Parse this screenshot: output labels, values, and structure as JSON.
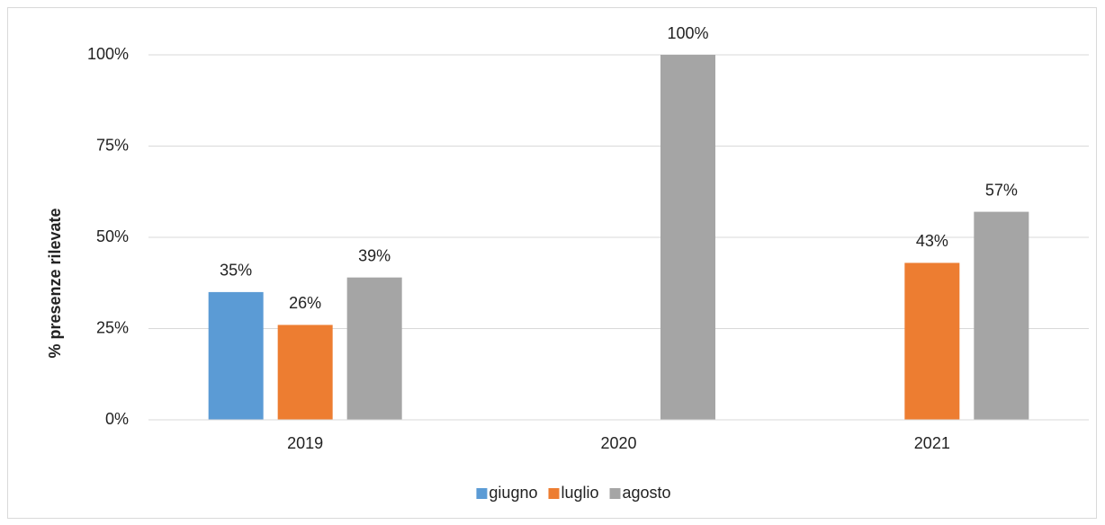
{
  "chart_data": {
    "type": "bar",
    "y_label": "% presenze rilevate",
    "categories": [
      "2019",
      "2020",
      "2021"
    ],
    "series": [
      {
        "name": "giugno",
        "color": "#5b9bd5",
        "values": [
          35,
          null,
          null
        ],
        "value_labels": [
          "35%",
          null,
          null
        ]
      },
      {
        "name": "luglio",
        "color": "#ed7d31",
        "values": [
          26,
          null,
          43
        ],
        "value_labels": [
          "26%",
          null,
          "43%"
        ]
      },
      {
        "name": "agosto",
        "color": "#a5a5a5",
        "values": [
          39,
          100,
          57
        ],
        "value_labels": [
          "39%",
          "100%",
          "57%"
        ]
      }
    ],
    "ylim": [
      0,
      100
    ],
    "yticks": [
      {
        "value": 0,
        "label": "0%"
      },
      {
        "value": 25,
        "label": "25%"
      },
      {
        "value": 50,
        "label": "50%"
      },
      {
        "value": 75,
        "label": "75%"
      },
      {
        "value": 100,
        "label": "100%"
      }
    ],
    "grid": true,
    "legend": "bottom"
  }
}
